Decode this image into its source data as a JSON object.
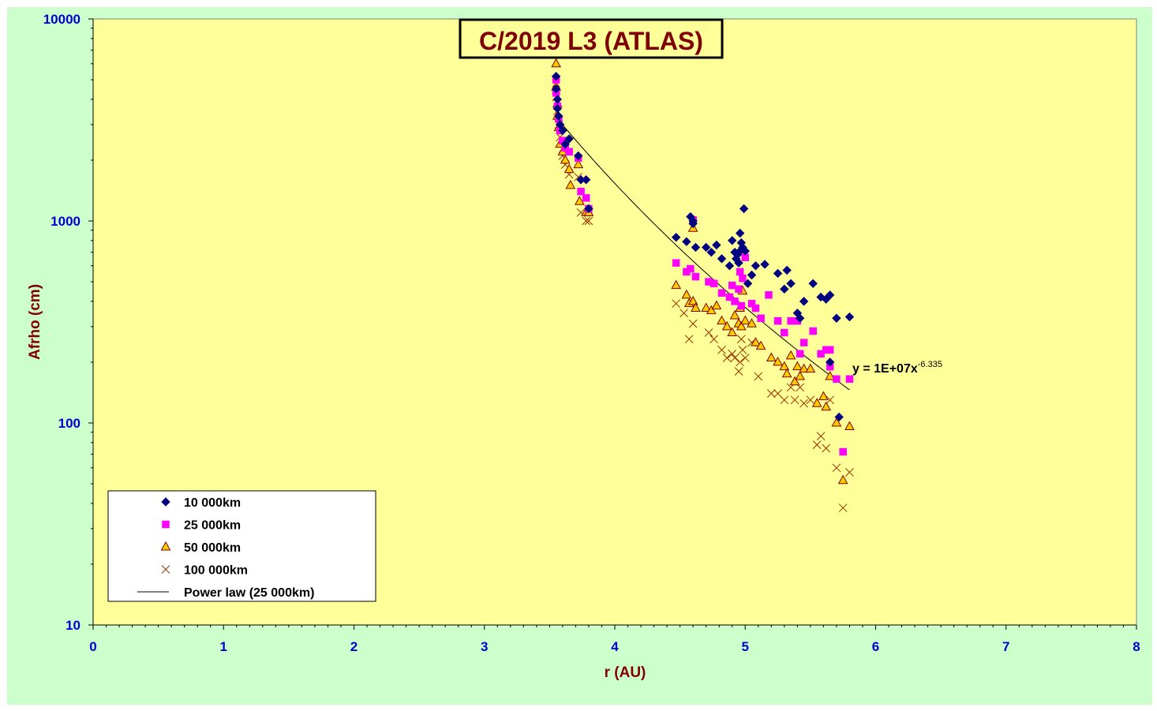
{
  "chart_data": {
    "type": "scatter",
    "title": "C/2019 L3 (ATLAS)",
    "xlabel": "r (AU)",
    "ylabel": "Afrho (cm)",
    "xlim": [
      0,
      8
    ],
    "ylim": [
      10,
      10000
    ],
    "yscale": "log",
    "x_ticks": [
      "0",
      "1",
      "2",
      "3",
      "4",
      "5",
      "6",
      "7",
      "8"
    ],
    "y_ticks": [
      "10",
      "100",
      "1000",
      "10000"
    ],
    "grid": false,
    "legend_position": "bottom-left",
    "colors": {
      "outer_background": "#ccffcc",
      "plot_background": "#ffff99",
      "series_10000": "#000080",
      "series_25000": "#ff00ff",
      "series_50000_fill": "#ffcc00",
      "series_50000_edge": "#800000",
      "series_100000": "#993300",
      "fit_line": "#000000",
      "title_color": "#800000",
      "tick_color": "#0000cc"
    },
    "trendline": {
      "name": "Power law (25 000km)",
      "equation_prefix": "y = 1E+07x",
      "equation_exponent": "-6.335",
      "coefficient": 10000000,
      "exponent": -6.335,
      "x_range": [
        3.56,
        5.8
      ]
    },
    "series": [
      {
        "name": "10 000km",
        "marker": "diamond",
        "x": [
          3.55,
          3.55,
          3.56,
          3.56,
          3.57,
          3.58,
          3.6,
          3.62,
          3.65,
          3.72,
          3.74,
          3.78,
          3.8,
          4.47,
          4.55,
          4.58,
          4.6,
          4.6,
          4.62,
          4.7,
          4.74,
          4.78,
          4.82,
          4.88,
          4.9,
          4.92,
          4.93,
          4.94,
          4.95,
          4.96,
          4.96,
          4.97,
          4.98,
          4.99,
          5.0,
          5.02,
          5.05,
          5.08,
          5.15,
          5.25,
          5.3,
          5.32,
          5.35,
          5.4,
          5.42,
          5.45,
          5.52,
          5.58,
          5.62,
          5.65,
          5.7,
          5.72,
          5.8,
          5.65
        ],
        "y": [
          5200,
          4500,
          4000,
          3600,
          3300,
          3000,
          2800,
          2400,
          2550,
          2100,
          1600,
          1600,
          1150,
          830,
          790,
          1050,
          1000,
          970,
          740,
          740,
          700,
          760,
          650,
          600,
          800,
          700,
          650,
          680,
          620,
          870,
          710,
          780,
          740,
          1150,
          710,
          490,
          540,
          600,
          610,
          550,
          460,
          570,
          490,
          350,
          330,
          400,
          490,
          420,
          410,
          430,
          330,
          107,
          335,
          200
        ]
      },
      {
        "name": "25 000km",
        "marker": "square",
        "x": [
          3.55,
          3.55,
          3.56,
          3.57,
          3.58,
          3.6,
          3.62,
          3.65,
          3.72,
          3.74,
          3.78,
          3.8,
          4.47,
          4.55,
          4.58,
          4.6,
          4.62,
          4.72,
          4.76,
          4.82,
          4.88,
          4.9,
          4.92,
          4.95,
          4.96,
          4.97,
          4.98,
          5.0,
          5.05,
          5.08,
          5.12,
          5.18,
          5.25,
          5.3,
          5.35,
          5.4,
          5.42,
          5.45,
          5.52,
          5.58,
          5.62,
          5.65,
          5.65,
          5.7,
          5.75,
          5.8
        ],
        "y": [
          5000,
          4300,
          3700,
          3200,
          2800,
          2500,
          2300,
          2200,
          2050,
          1400,
          1300,
          1150,
          620,
          560,
          580,
          1010,
          530,
          500,
          490,
          440,
          420,
          480,
          400,
          460,
          560,
          380,
          520,
          660,
          390,
          370,
          330,
          430,
          320,
          280,
          320,
          320,
          220,
          250,
          285,
          220,
          230,
          190,
          230,
          165,
          72,
          165
        ]
      },
      {
        "name": "50 000km",
        "marker": "triangle",
        "x": [
          3.55,
          3.55,
          3.56,
          3.56,
          3.57,
          3.58,
          3.6,
          3.62,
          3.65,
          3.66,
          3.72,
          3.73,
          3.78,
          3.8,
          4.47,
          4.55,
          4.57,
          4.6,
          4.6,
          4.62,
          4.7,
          4.74,
          4.78,
          4.82,
          4.86,
          4.9,
          4.92,
          4.95,
          4.96,
          4.97,
          4.98,
          5.0,
          5.05,
          5.08,
          5.12,
          5.2,
          5.25,
          5.3,
          5.32,
          5.35,
          5.38,
          5.4,
          5.42,
          5.45,
          5.5,
          5.55,
          5.6,
          5.62,
          5.65,
          5.7,
          5.75,
          5.8
        ],
        "y": [
          6000,
          4600,
          3800,
          3300,
          2900,
          2400,
          2200,
          2000,
          1800,
          1500,
          1900,
          1250,
          1100,
          1100,
          480,
          430,
          390,
          400,
          920,
          370,
          370,
          360,
          380,
          320,
          300,
          280,
          340,
          310,
          370,
          300,
          450,
          320,
          310,
          250,
          240,
          210,
          200,
          190,
          175,
          215,
          160,
          190,
          170,
          185,
          185,
          125,
          135,
          120,
          170,
          100,
          52,
          96
        ]
      },
      {
        "name": "100 000km",
        "marker": "x",
        "x": [
          3.55,
          3.55,
          3.56,
          3.57,
          3.58,
          3.6,
          3.62,
          3.65,
          3.72,
          3.74,
          3.78,
          3.8,
          4.47,
          4.53,
          4.57,
          4.6,
          4.72,
          4.76,
          4.82,
          4.86,
          4.9,
          4.92,
          4.95,
          4.96,
          4.97,
          4.98,
          5.0,
          5.05,
          5.1,
          5.2,
          5.25,
          5.3,
          5.35,
          5.38,
          5.42,
          5.45,
          5.5,
          5.55,
          5.58,
          5.62,
          5.65,
          5.7,
          5.75,
          5.8
        ],
        "y": [
          4800,
          4100,
          3500,
          3000,
          2600,
          2100,
          1900,
          1700,
          1650,
          1100,
          1000,
          1000,
          390,
          350,
          260,
          310,
          280,
          260,
          230,
          210,
          220,
          210,
          180,
          200,
          260,
          230,
          210,
          250,
          170,
          140,
          140,
          130,
          150,
          130,
          150,
          125,
          130,
          78,
          86,
          75,
          130,
          60,
          38,
          57
        ]
      }
    ]
  },
  "legend": {
    "items": [
      {
        "label": "10 000km",
        "marker": "diamond"
      },
      {
        "label": "25 000km",
        "marker": "square"
      },
      {
        "label": "50 000km",
        "marker": "triangle"
      },
      {
        "label": "100 000km",
        "marker": "x"
      },
      {
        "label": "Power law (25 000km)",
        "marker": "line"
      }
    ]
  }
}
